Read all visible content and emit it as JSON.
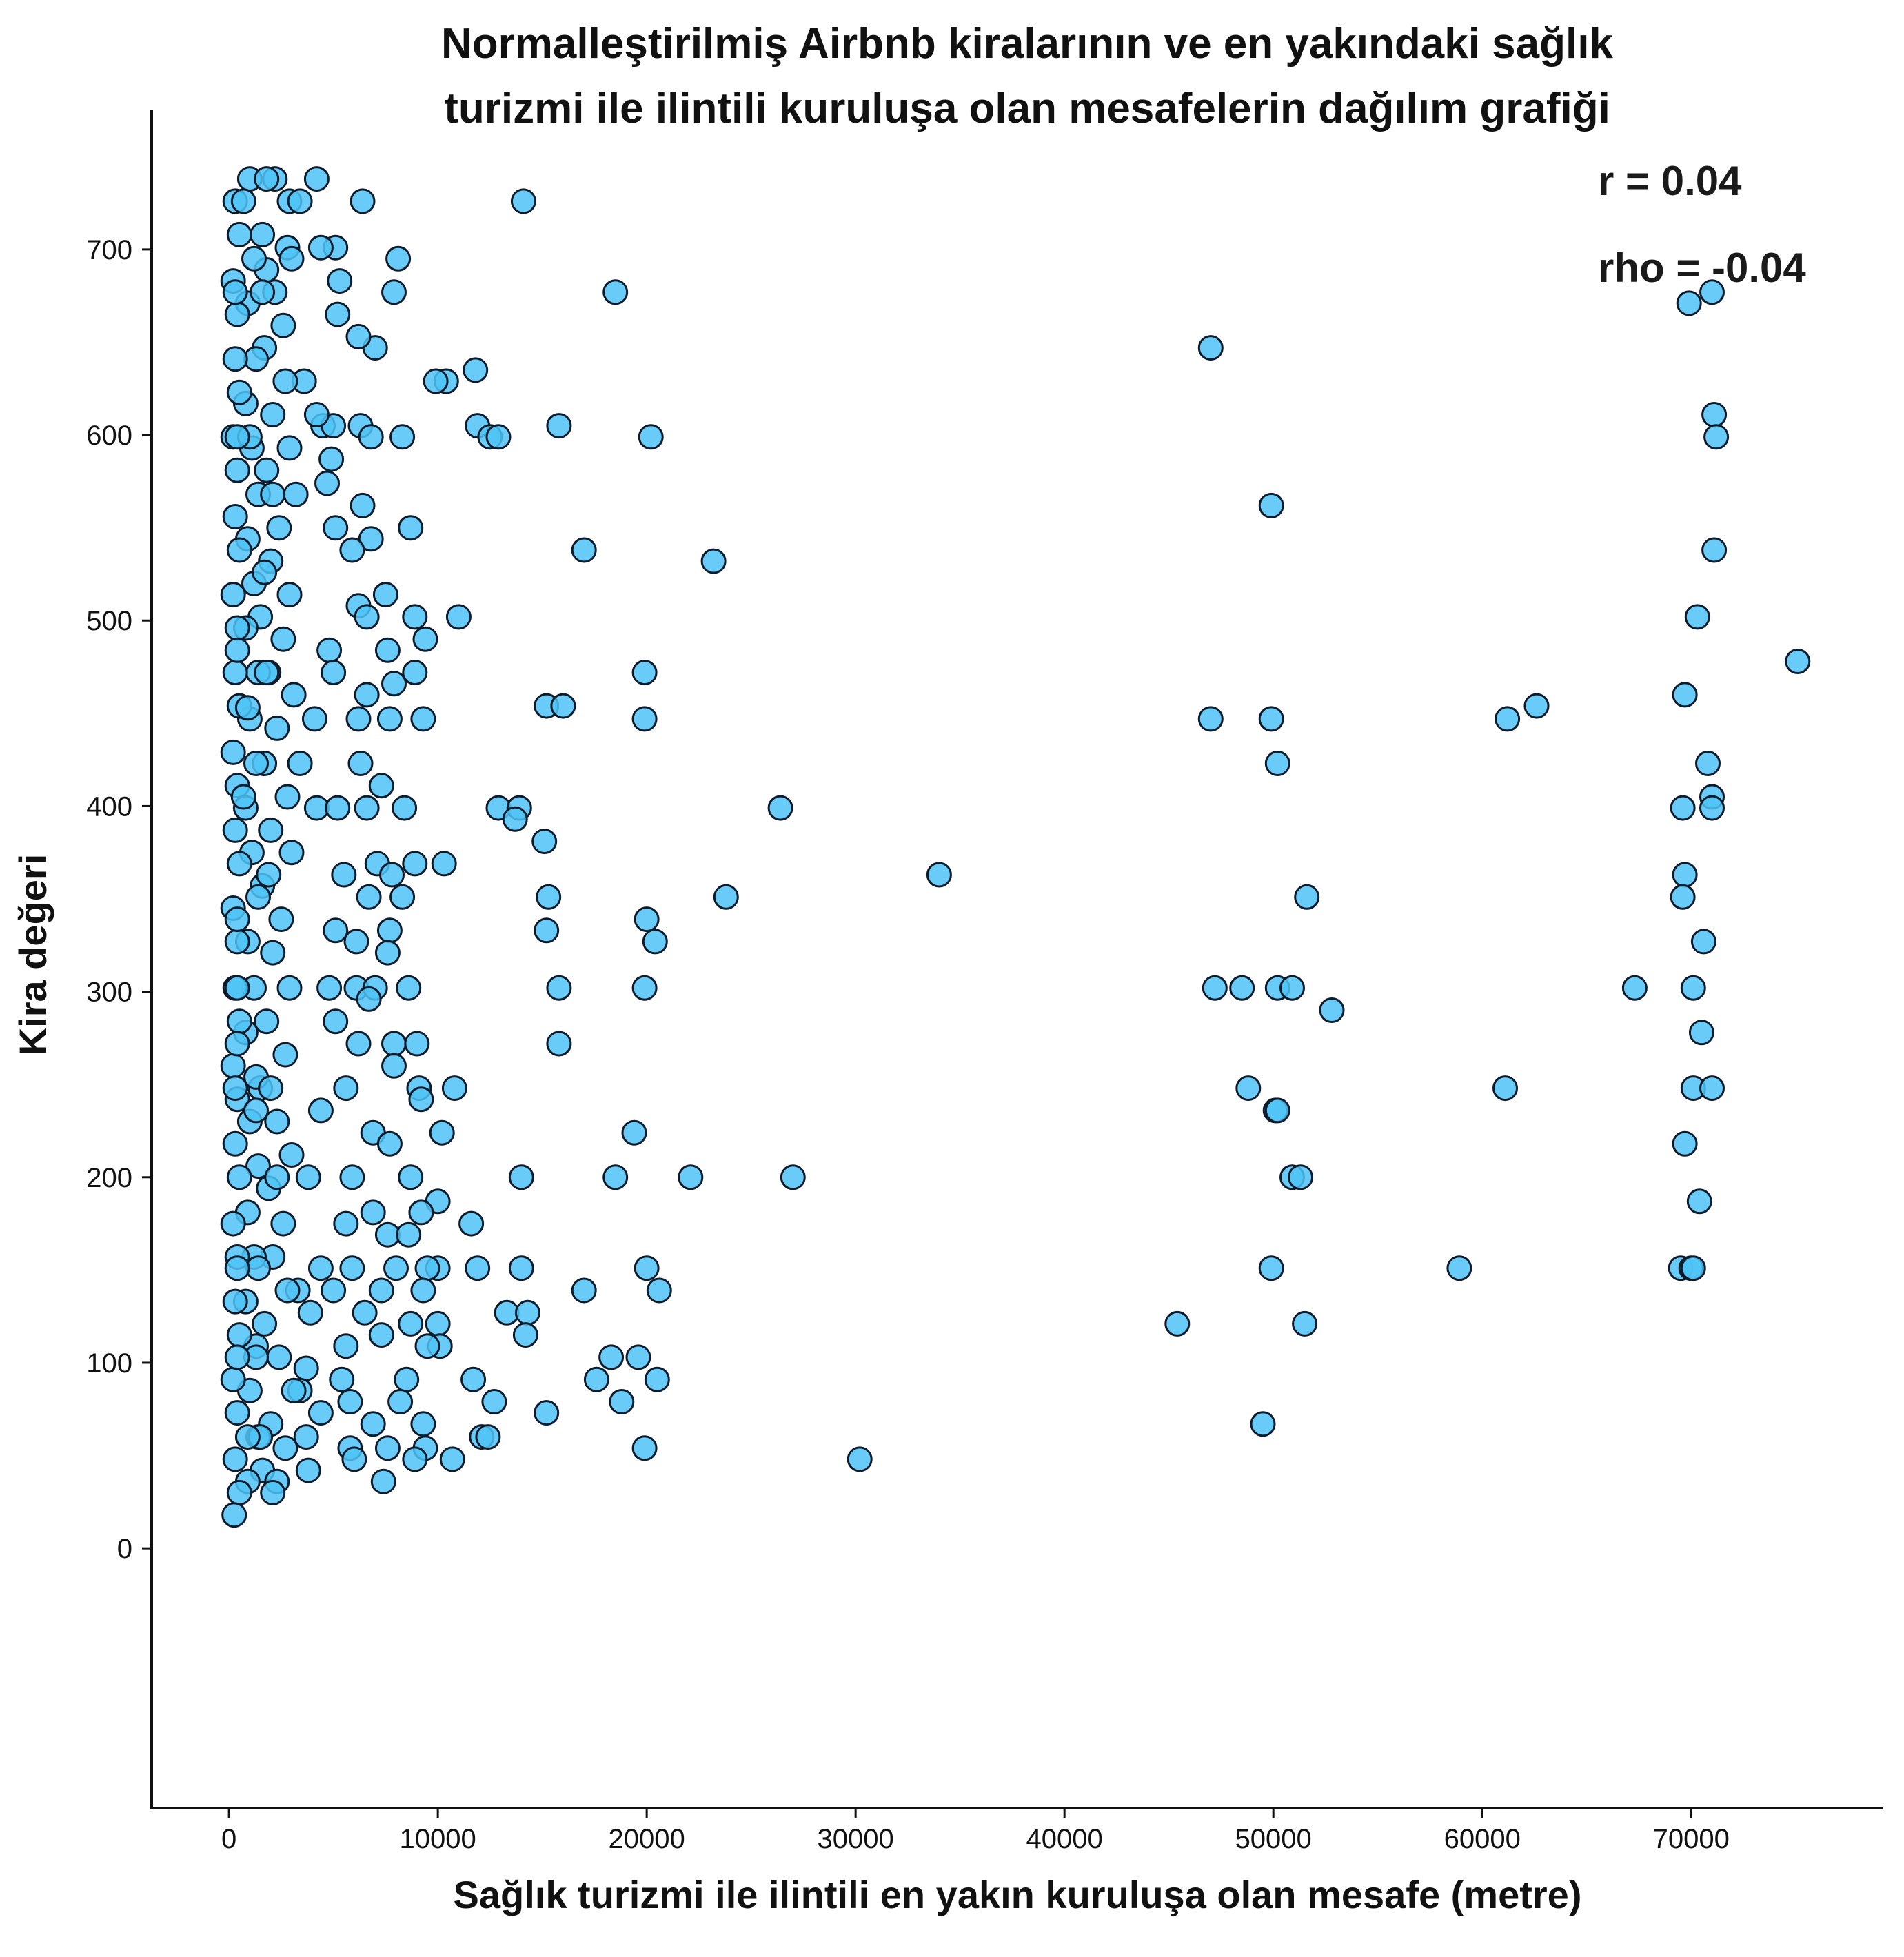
{
  "colors": {
    "point_fill": "#4fc3f7",
    "point_stroke": "#0d1b2a",
    "axis": "#111111"
  },
  "chart_data": {
    "type": "scatter",
    "title_lines": [
      "Normalleştirilmiş Airbnb kiralarının ve en yakındaki sağlık",
      "turizmi ile ilintili kuruluşa olan mesafelerin dağılım grafiği"
    ],
    "xlabel": "Sağlık turizmi ile ilintili en yakın kuruluşa olan mesafe (metre)",
    "ylabel": "Kira değeri",
    "xlim": [
      -3700,
      79200
    ],
    "ylim": [
      -140,
      775
    ],
    "xticks": [
      0,
      10000,
      20000,
      30000,
      40000,
      50000,
      60000,
      70000
    ],
    "yticks": [
      0,
      100,
      200,
      300,
      400,
      500,
      600,
      700
    ],
    "grid": false,
    "annotations": [
      "r = 0.04",
      "rho = -0.04"
    ],
    "points": [
      [
        75100,
        478
      ],
      [
        71000,
        677
      ],
      [
        69900,
        671
      ],
      [
        71100,
        611
      ],
      [
        71200,
        599
      ],
      [
        71100,
        538
      ],
      [
        70300,
        502
      ],
      [
        69700,
        460
      ],
      [
        70800,
        423
      ],
      [
        71000,
        405
      ],
      [
        71000,
        399
      ],
      [
        69600,
        399
      ],
      [
        69700,
        363
      ],
      [
        69600,
        351
      ],
      [
        70600,
        327
      ],
      [
        67300,
        302
      ],
      [
        70100,
        302
      ],
      [
        70500,
        278
      ],
      [
        70100,
        248
      ],
      [
        71000,
        248
      ],
      [
        69700,
        218
      ],
      [
        70400,
        187
      ],
      [
        69500,
        151
      ],
      [
        70000,
        151
      ],
      [
        70100,
        151
      ],
      [
        62600,
        454
      ],
      [
        61200,
        447
      ],
      [
        61100,
        248
      ],
      [
        58900,
        151
      ],
      [
        47000,
        647
      ],
      [
        49900,
        562
      ],
      [
        47000,
        447
      ],
      [
        49900,
        447
      ],
      [
        50200,
        423
      ],
      [
        51600,
        351
      ],
      [
        47200,
        302
      ],
      [
        48500,
        302
      ],
      [
        50200,
        302
      ],
      [
        50900,
        302
      ],
      [
        52800,
        290
      ],
      [
        48800,
        248
      ],
      [
        50100,
        236
      ],
      [
        50200,
        236
      ],
      [
        50900,
        200
      ],
      [
        51300,
        200
      ],
      [
        49900,
        151
      ],
      [
        45400,
        121
      ],
      [
        51500,
        121
      ],
      [
        49500,
        67
      ],
      [
        34000,
        363
      ],
      [
        30200,
        48
      ],
      [
        26400,
        399
      ],
      [
        23800,
        351
      ],
      [
        27000,
        200
      ],
      [
        22100,
        200
      ],
      [
        23200,
        532
      ],
      [
        14100,
        726
      ],
      [
        18500,
        677
      ],
      [
        15800,
        605
      ],
      [
        20200,
        599
      ],
      [
        17000,
        538
      ],
      [
        19900,
        472
      ],
      [
        15200,
        454
      ],
      [
        16000,
        454
      ],
      [
        19900,
        447
      ],
      [
        12900,
        399
      ],
      [
        13900,
        399
      ],
      [
        13700,
        393
      ],
      [
        15100,
        381
      ],
      [
        15300,
        351
      ],
      [
        20000,
        339
      ],
      [
        20400,
        327
      ],
      [
        15200,
        333
      ],
      [
        15800,
        302
      ],
      [
        19900,
        302
      ],
      [
        15800,
        272
      ],
      [
        19400,
        224
      ],
      [
        14000,
        200
      ],
      [
        18500,
        200
      ],
      [
        20000,
        151
      ],
      [
        14000,
        151
      ],
      [
        17000,
        139
      ],
      [
        20600,
        139
      ],
      [
        13300,
        127
      ],
      [
        14300,
        127
      ],
      [
        14200,
        115
      ],
      [
        18300,
        103
      ],
      [
        19600,
        103
      ],
      [
        17600,
        91
      ],
      [
        20500,
        91
      ],
      [
        18800,
        79
      ],
      [
        15200,
        73
      ],
      [
        19900,
        54
      ],
      [
        10400,
        629
      ],
      [
        11800,
        635
      ],
      [
        9900,
        629
      ],
      [
        11900,
        605
      ],
      [
        12500,
        599
      ],
      [
        12900,
        599
      ],
      [
        10300,
        369
      ],
      [
        10800,
        248
      ],
      [
        10200,
        224
      ],
      [
        11600,
        175
      ],
      [
        11900,
        151
      ],
      [
        10700,
        48
      ],
      [
        11700,
        91
      ],
      [
        12700,
        79
      ],
      [
        12100,
        60
      ],
      [
        12400,
        60
      ],
      [
        11000,
        502
      ],
      [
        10000,
        151
      ],
      [
        10000,
        187
      ],
      [
        10000,
        121
      ],
      [
        10100,
        109
      ],
      [
        4200,
        738
      ],
      [
        6400,
        726
      ],
      [
        7000,
        647
      ],
      [
        8100,
        695
      ],
      [
        7900,
        677
      ],
      [
        3600,
        629
      ],
      [
        5100,
        701
      ],
      [
        4400,
        701
      ],
      [
        5300,
        683
      ],
      [
        5200,
        665
      ],
      [
        6200,
        653
      ],
      [
        4500,
        605
      ],
      [
        5000,
        605
      ],
      [
        6300,
        605
      ],
      [
        6800,
        599
      ],
      [
        8300,
        599
      ],
      [
        4200,
        611
      ],
      [
        4900,
        587
      ],
      [
        6400,
        562
      ],
      [
        6800,
        544
      ],
      [
        8700,
        550
      ],
      [
        5100,
        550
      ],
      [
        5900,
        538
      ],
      [
        4700,
        574
      ],
      [
        7500,
        514
      ],
      [
        6200,
        508
      ],
      [
        8900,
        502
      ],
      [
        6600,
        502
      ],
      [
        9400,
        490
      ],
      [
        4800,
        484
      ],
      [
        7600,
        484
      ],
      [
        8900,
        472
      ],
      [
        5000,
        472
      ],
      [
        7900,
        466
      ],
      [
        6600,
        460
      ],
      [
        4100,
        447
      ],
      [
        6200,
        447
      ],
      [
        7700,
        447
      ],
      [
        9300,
        447
      ],
      [
        3400,
        423
      ],
      [
        6300,
        423
      ],
      [
        7300,
        411
      ],
      [
        4200,
        399
      ],
      [
        5200,
        399
      ],
      [
        6600,
        399
      ],
      [
        8400,
        399
      ],
      [
        8900,
        369
      ],
      [
        7100,
        369
      ],
      [
        5500,
        363
      ],
      [
        7800,
        363
      ],
      [
        8300,
        351
      ],
      [
        6700,
        351
      ],
      [
        5100,
        333
      ],
      [
        7700,
        333
      ],
      [
        6100,
        327
      ],
      [
        7600,
        321
      ],
      [
        4800,
        302
      ],
      [
        6100,
        302
      ],
      [
        7000,
        302
      ],
      [
        8600,
        302
      ],
      [
        5100,
        284
      ],
      [
        6700,
        296
      ],
      [
        6200,
        272
      ],
      [
        7900,
        272
      ],
      [
        9000,
        272
      ],
      [
        5600,
        248
      ],
      [
        7900,
        260
      ],
      [
        9100,
        248
      ],
      [
        4400,
        236
      ],
      [
        9200,
        242
      ],
      [
        6900,
        224
      ],
      [
        7700,
        218
      ],
      [
        3800,
        200
      ],
      [
        5900,
        200
      ],
      [
        8700,
        200
      ],
      [
        6900,
        181
      ],
      [
        9200,
        181
      ],
      [
        5600,
        175
      ],
      [
        7600,
        169
      ],
      [
        8600,
        169
      ],
      [
        4400,
        151
      ],
      [
        5900,
        151
      ],
      [
        8000,
        151
      ],
      [
        9500,
        151
      ],
      [
        3300,
        139
      ],
      [
        5000,
        139
      ],
      [
        7300,
        139
      ],
      [
        9300,
        139
      ],
      [
        3900,
        127
      ],
      [
        6500,
        127
      ],
      [
        8700,
        121
      ],
      [
        5600,
        109
      ],
      [
        7300,
        115
      ],
      [
        9500,
        109
      ],
      [
        3700,
        97
      ],
      [
        5400,
        91
      ],
      [
        8500,
        91
      ],
      [
        3400,
        85
      ],
      [
        5800,
        79
      ],
      [
        8200,
        79
      ],
      [
        4400,
        73
      ],
      [
        6900,
        67
      ],
      [
        9300,
        67
      ],
      [
        3700,
        60
      ],
      [
        5800,
        54
      ],
      [
        7600,
        54
      ],
      [
        9400,
        54
      ],
      [
        3800,
        42
      ],
      [
        7400,
        36
      ],
      [
        6000,
        48
      ],
      [
        8900,
        48
      ],
      [
        2200,
        738
      ],
      [
        2900,
        726
      ],
      [
        1600,
        708
      ],
      [
        2800,
        701
      ],
      [
        1800,
        689
      ],
      [
        3000,
        695
      ],
      [
        2200,
        677
      ],
      [
        2600,
        659
      ],
      [
        1700,
        647
      ],
      [
        2700,
        629
      ],
      [
        2100,
        611
      ],
      [
        2900,
        593
      ],
      [
        1800,
        581
      ],
      [
        3200,
        568
      ],
      [
        2400,
        550
      ],
      [
        2000,
        532
      ],
      [
        2900,
        514
      ],
      [
        1500,
        502
      ],
      [
        2600,
        490
      ],
      [
        1900,
        472
      ],
      [
        3100,
        460
      ],
      [
        2300,
        442
      ],
      [
        1700,
        423
      ],
      [
        2800,
        405
      ],
      [
        2000,
        387
      ],
      [
        3000,
        375
      ],
      [
        1600,
        357
      ],
      [
        2500,
        339
      ],
      [
        2100,
        321
      ],
      [
        2900,
        302
      ],
      [
        1800,
        284
      ],
      [
        2700,
        266
      ],
      [
        1500,
        248
      ],
      [
        2300,
        230
      ],
      [
        3000,
        212
      ],
      [
        1900,
        194
      ],
      [
        2600,
        175
      ],
      [
        2100,
        157
      ],
      [
        2800,
        139
      ],
      [
        1700,
        121
      ],
      [
        2400,
        103
      ],
      [
        3100,
        85
      ],
      [
        2000,
        67
      ],
      [
        2700,
        54
      ],
      [
        1600,
        42
      ],
      [
        2300,
        36
      ],
      [
        1000,
        738
      ],
      [
        1200,
        695
      ],
      [
        900,
        671
      ],
      [
        1300,
        641
      ],
      [
        800,
        617
      ],
      [
        1100,
        593
      ],
      [
        1400,
        568
      ],
      [
        900,
        544
      ],
      [
        1200,
        520
      ],
      [
        800,
        496
      ],
      [
        1400,
        472
      ],
      [
        1000,
        447
      ],
      [
        1300,
        423
      ],
      [
        800,
        399
      ],
      [
        1100,
        375
      ],
      [
        1400,
        351
      ],
      [
        900,
        327
      ],
      [
        1200,
        302
      ],
      [
        800,
        278
      ],
      [
        1300,
        254
      ],
      [
        1000,
        230
      ],
      [
        1400,
        206
      ],
      [
        900,
        181
      ],
      [
        1200,
        157
      ],
      [
        800,
        133
      ],
      [
        1300,
        109
      ],
      [
        1000,
        85
      ],
      [
        1400,
        60
      ],
      [
        900,
        36
      ],
      [
        300,
        726
      ],
      [
        500,
        708
      ],
      [
        200,
        683
      ],
      [
        400,
        665
      ],
      [
        300,
        641
      ],
      [
        500,
        623
      ],
      [
        200,
        599
      ],
      [
        400,
        581
      ],
      [
        300,
        556
      ],
      [
        500,
        538
      ],
      [
        200,
        514
      ],
      [
        400,
        496
      ],
      [
        300,
        472
      ],
      [
        500,
        454
      ],
      [
        200,
        429
      ],
      [
        400,
        411
      ],
      [
        300,
        387
      ],
      [
        500,
        369
      ],
      [
        200,
        345
      ],
      [
        400,
        327
      ],
      [
        300,
        302
      ],
      [
        500,
        284
      ],
      [
        200,
        260
      ],
      [
        400,
        242
      ],
      [
        300,
        218
      ],
      [
        500,
        200
      ],
      [
        200,
        175
      ],
      [
        400,
        157
      ],
      [
        300,
        133
      ],
      [
        500,
        115
      ],
      [
        200,
        91
      ],
      [
        400,
        73
      ],
      [
        300,
        48
      ],
      [
        500,
        30
      ],
      [
        250,
        18
      ],
      [
        1800,
        738
      ],
      [
        3400,
        726
      ],
      [
        700,
        726
      ],
      [
        1600,
        677
      ],
      [
        300,
        677
      ],
      [
        1000,
        599
      ],
      [
        400,
        599
      ],
      [
        1800,
        472
      ],
      [
        400,
        484
      ],
      [
        700,
        405
      ],
      [
        400,
        339
      ],
      [
        400,
        302
      ],
      [
        2000,
        248
      ],
      [
        300,
        248
      ],
      [
        1400,
        151
      ],
      [
        400,
        151
      ],
      [
        1300,
        103
      ],
      [
        400,
        103
      ],
      [
        1500,
        60
      ],
      [
        900,
        60
      ],
      [
        2100,
        30
      ],
      [
        1900,
        363
      ],
      [
        900,
        453
      ],
      [
        400,
        272
      ],
      [
        2300,
        200
      ],
      [
        1300,
        236
      ],
      [
        2100,
        568
      ],
      [
        1700,
        526
      ]
    ]
  }
}
